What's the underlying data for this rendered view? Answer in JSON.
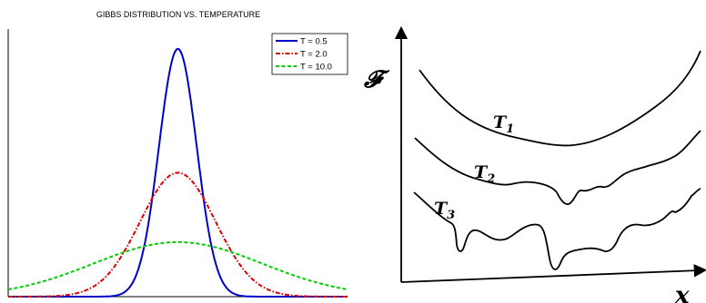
{
  "chart_data": [
    {
      "type": "line",
      "title": "GIBBS DISTRIBUTION VS. TEMPERATURE",
      "xlabel": "",
      "ylabel": "",
      "grid": false,
      "legend": "top-right",
      "series": [
        {
          "name": "T = 0.5",
          "color": "#0000cc",
          "style": "solid",
          "peak": 1.0,
          "spread": 0.5
        },
        {
          "name": "T = 2.0",
          "color": "#dd0000",
          "style": "dashdot",
          "peak": 0.5,
          "spread": 1.0
        },
        {
          "name": "T = 10.0",
          "color": "#00cc00",
          "style": "dashed",
          "peak": 0.22,
          "spread": 2.24
        }
      ],
      "xlim": [
        -4.5,
        4.5
      ],
      "ylim": [
        0,
        1.08
      ]
    },
    {
      "type": "line",
      "ylabel": "𝓕",
      "xlabel": "x",
      "curves": [
        {
          "name": "T",
          "sub": "1",
          "color": "#000000"
        },
        {
          "name": "T",
          "sub": "2",
          "color": "#000000"
        },
        {
          "name": "T",
          "sub": "3",
          "color": "#000000"
        }
      ]
    }
  ]
}
